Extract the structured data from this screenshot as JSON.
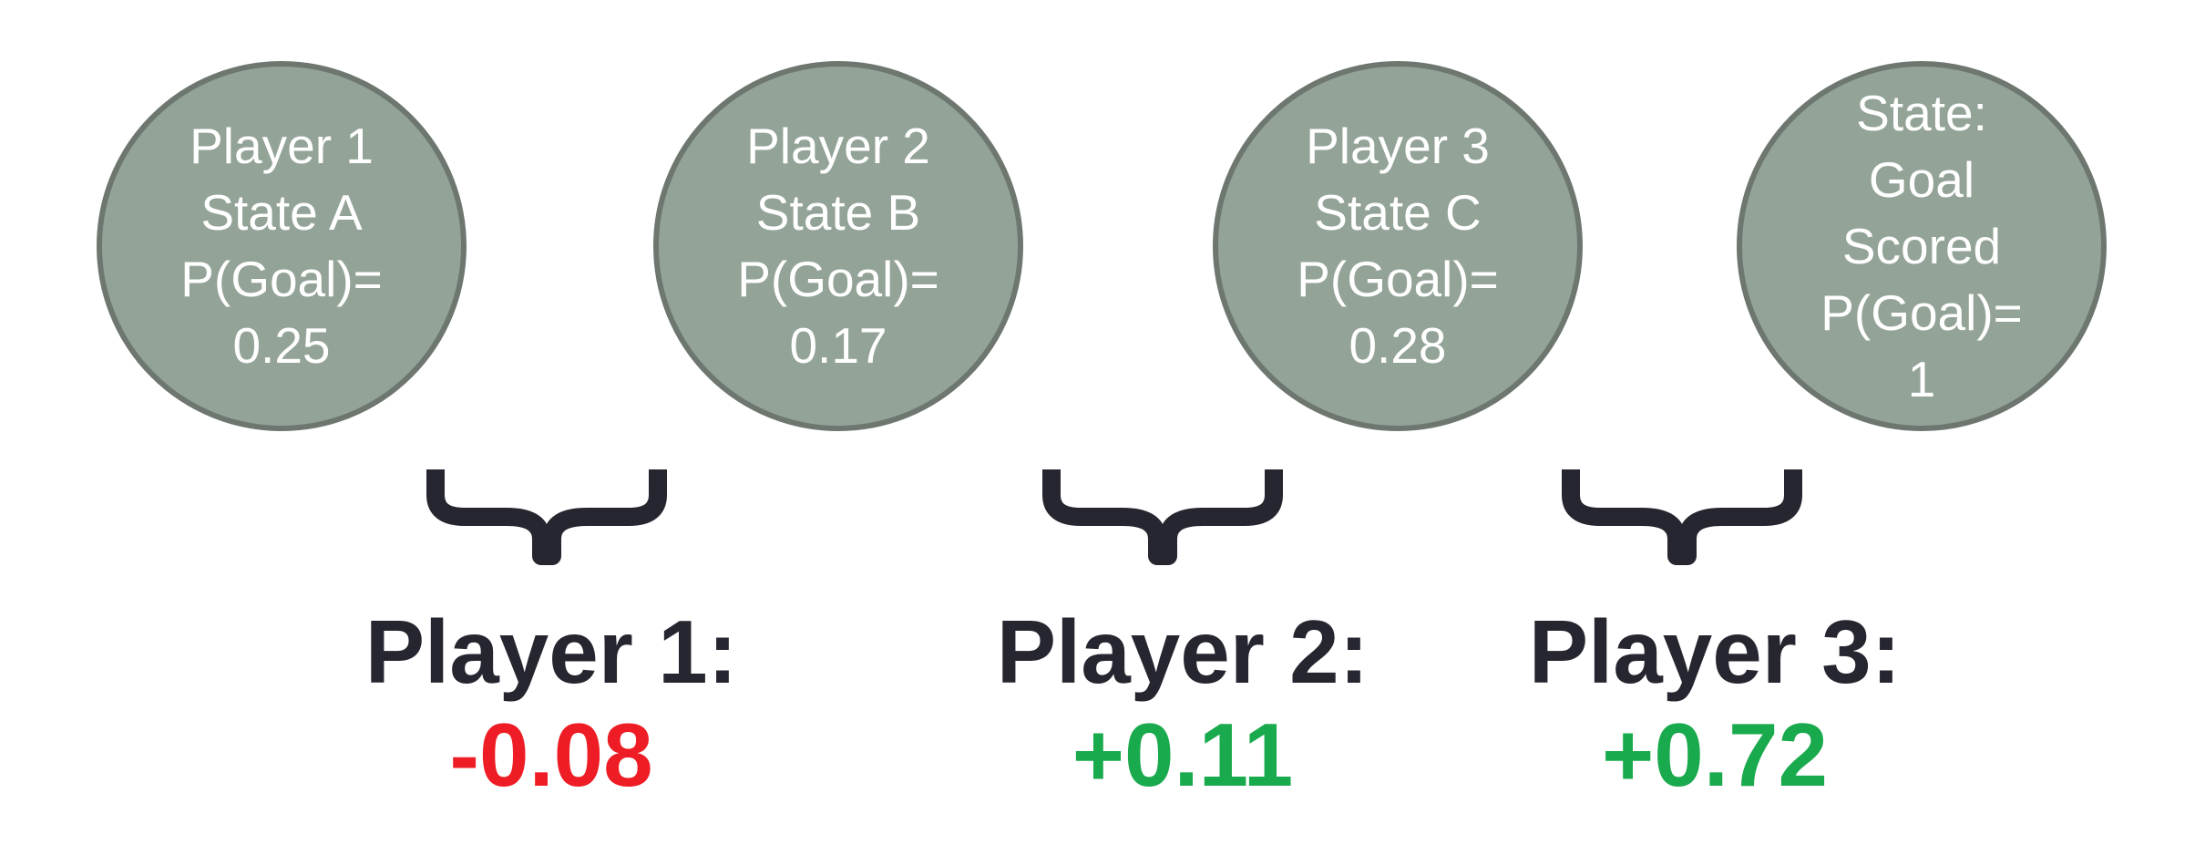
{
  "states": [
    {
      "lines": [
        "Player 1",
        "State A",
        "P(Goal)=",
        "0.25"
      ]
    },
    {
      "lines": [
        "Player 2",
        "State B",
        "P(Goal)=",
        "0.17"
      ]
    },
    {
      "lines": [
        "Player 3",
        "State C",
        "P(Goal)=",
        "0.28"
      ]
    },
    {
      "lines": [
        "State:",
        "Goal",
        "Scored",
        "P(Goal)=",
        "1"
      ]
    }
  ],
  "contributions": [
    {
      "label": "Player 1:",
      "value": "-0.08",
      "sign": "negative"
    },
    {
      "label": "Player 2:",
      "value": "+0.11",
      "sign": "positive"
    },
    {
      "label": "Player 3:",
      "value": "+0.72",
      "sign": "positive"
    }
  ],
  "colors": {
    "circle_fill": "#93a397",
    "circle_border": "#6d776f",
    "text_dark": "#262630",
    "negative": "#ee1c24",
    "positive": "#1aaa4e"
  },
  "icons": [
    "curly-brace-icon"
  ]
}
